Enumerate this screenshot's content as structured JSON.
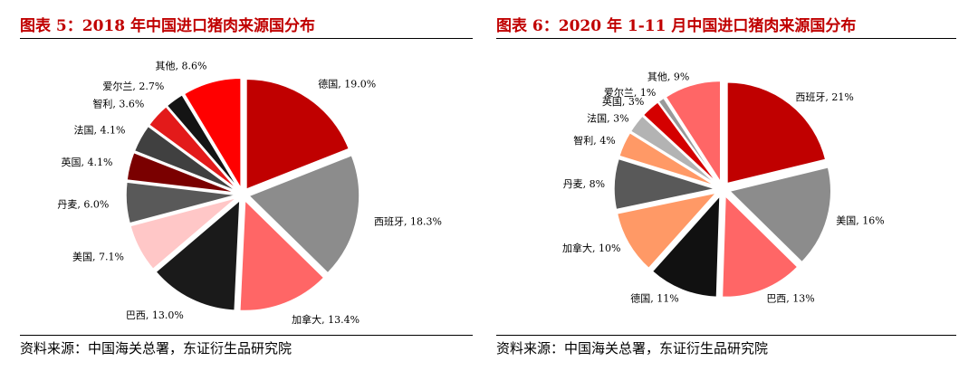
{
  "left": {
    "title": "图表 5：2018 年中国进口猪肉来源国分布",
    "source": "资料来源：中国海关总署，东证衍生品研究院"
  },
  "right": {
    "title": "图表 6：2020 年 1-11 月中国进口猪肉来源国分布",
    "source": "资料来源：中国海关总署，东证衍生品研究院"
  },
  "chart_data": [
    {
      "type": "pie",
      "title": "图表 5：2018 年中国进口猪肉来源国分布",
      "labels": [
        "德国",
        "西班牙",
        "加拿大",
        "巴西",
        "美国",
        "丹麦",
        "英国",
        "法国",
        "智利",
        "爱尔兰",
        "其他"
      ],
      "values": [
        19.0,
        18.3,
        13.4,
        13.0,
        7.1,
        6.0,
        4.1,
        4.1,
        3.6,
        2.7,
        8.6
      ],
      "value_labels": [
        "19.0%",
        "18.3%",
        "13.4%",
        "13.0%",
        "7.1%",
        "6.0%",
        "4.1%",
        "4.1%",
        "3.6%",
        "2.7%",
        "8.6%"
      ],
      "colors": [
        "#c00000",
        "#8c8c8c",
        "#ff6666",
        "#1a1a1a",
        "#ffc7c7",
        "#595959",
        "#7a0000",
        "#404040",
        "#e31a1a",
        "#141414",
        "#ff0000"
      ],
      "start": "12 o'clock, clockwise",
      "unit": "%"
    },
    {
      "type": "pie",
      "title": "图表 6：2020 年 1-11 月中国进口猪肉来源国分布",
      "labels": [
        "西班牙",
        "美国",
        "巴西",
        "德国",
        "加拿大",
        "丹麦",
        "智利",
        "法国",
        "英国",
        "爱尔兰",
        "其他"
      ],
      "values": [
        21,
        16,
        13,
        11,
        10,
        8,
        4,
        3,
        3,
        1,
        9
      ],
      "value_labels": [
        "21%",
        "16%",
        "13%",
        "11%",
        "10%",
        "8%",
        "4%",
        "3%",
        "3%",
        "1%",
        "9%"
      ],
      "colors": [
        "#c00000",
        "#8c8c8c",
        "#ff6666",
        "#111111",
        "#ff9966",
        "#595959",
        "#ff9966",
        "#b3b3b3",
        "#d40000",
        "#999999",
        "#ff6666"
      ],
      "start": "12 o'clock, clockwise",
      "unit": "%"
    }
  ]
}
